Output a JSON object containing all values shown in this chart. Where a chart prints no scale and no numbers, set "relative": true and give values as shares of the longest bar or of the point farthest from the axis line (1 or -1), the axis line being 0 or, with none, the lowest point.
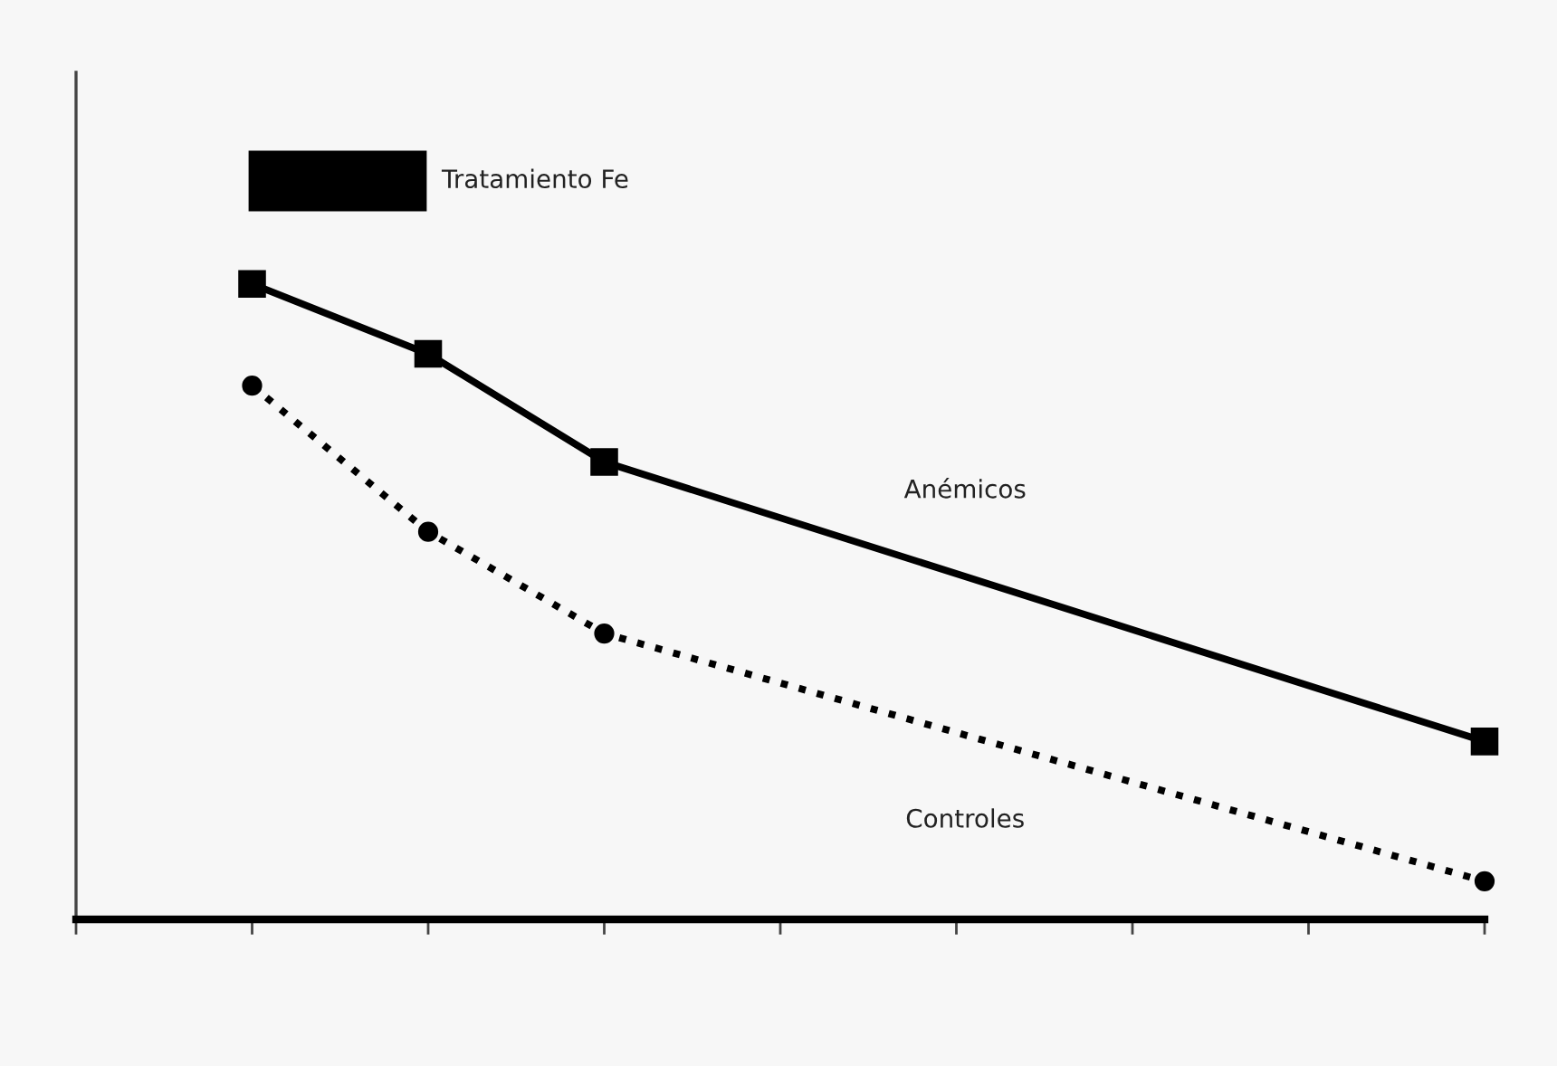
{
  "chart_data": {
    "type": "line",
    "relative": true,
    "categories": [
      null,
      null,
      null,
      null,
      null,
      null,
      null,
      null,
      null
    ],
    "grid": false,
    "legend": false,
    "series": [
      {
        "name": "Anémicos",
        "color": "#000000",
        "marker": "square",
        "line_style": "solid",
        "values": [
          null,
          1.0,
          0.89,
          0.72,
          null,
          null,
          null,
          null,
          0.28
        ]
      },
      {
        "name": "Controles",
        "color": "#000000",
        "marker": "circle",
        "line_style": "dotted",
        "values": [
          null,
          0.84,
          0.61,
          0.45,
          null,
          null,
          null,
          null,
          0.06
        ]
      }
    ],
    "annotations": [
      "Tratamiento Fe"
    ]
  }
}
